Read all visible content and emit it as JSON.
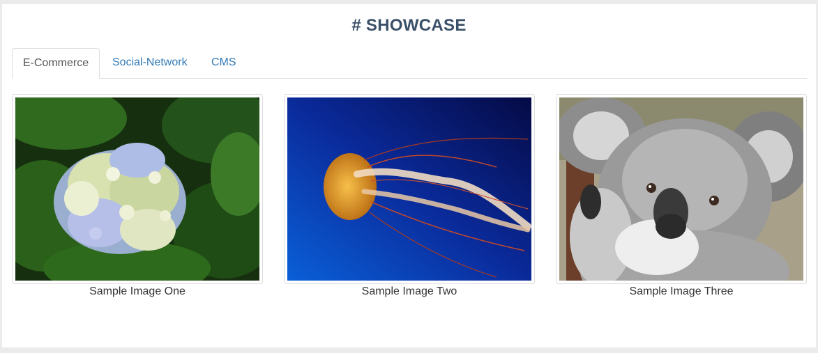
{
  "section": {
    "title": "# SHOWCASE"
  },
  "tabs": [
    {
      "label": "E-Commerce",
      "active": true
    },
    {
      "label": "Social-Network",
      "active": false
    },
    {
      "label": "CMS",
      "active": false
    }
  ],
  "gallery": [
    {
      "caption": "Sample Image One",
      "subject": "hydrangea-flower"
    },
    {
      "caption": "Sample Image Two",
      "subject": "jellyfish"
    },
    {
      "caption": "Sample Image Three",
      "subject": "koala"
    }
  ],
  "colors": {
    "title": "#3a5068",
    "link": "#337ab7",
    "active_tab_text": "#555555",
    "border": "#dddddd"
  }
}
